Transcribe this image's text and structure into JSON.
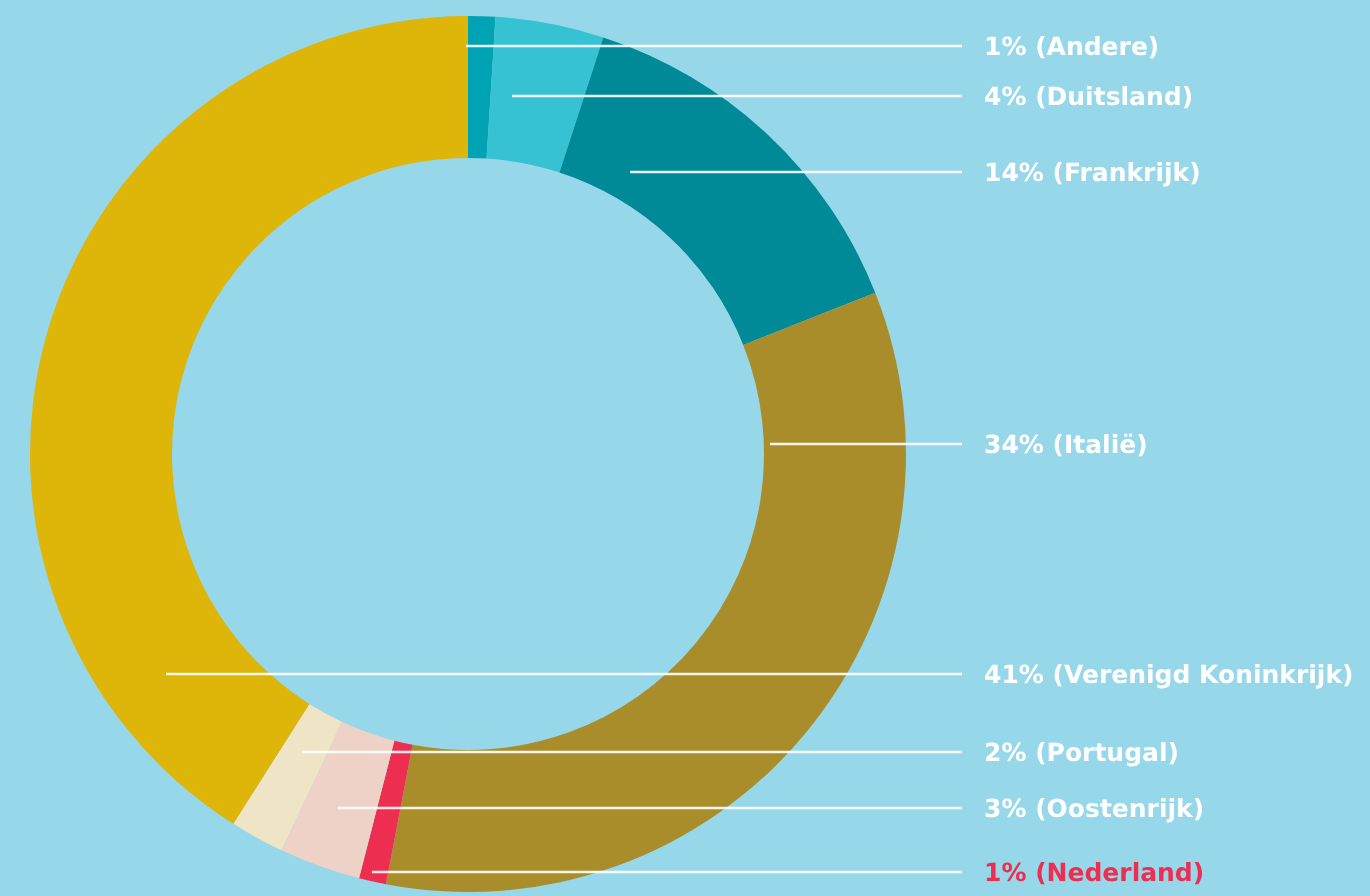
{
  "chart_data": {
    "type": "donut",
    "categories": [
      "(Andere)",
      "(Duitsland)",
      "(Frankrijk)",
      "(Italië)",
      "(Nederland)",
      "(Oostenrijk)",
      "(Portugal)",
      "(Verenigd Koninkrijk)"
    ],
    "values": [
      1,
      4,
      14,
      34,
      1,
      3,
      2,
      41
    ],
    "value_labels": [
      "1%",
      "4%",
      "14%",
      "34%",
      "1%",
      "3%",
      "2%",
      "41%"
    ],
    "colors": [
      "#00a3b4",
      "#36c2d3",
      "#008996",
      "#a98d2b",
      "#ee2e50",
      "#eed2c8",
      "#f0e4c6",
      "#deb509"
    ],
    "legend": false
  }
}
